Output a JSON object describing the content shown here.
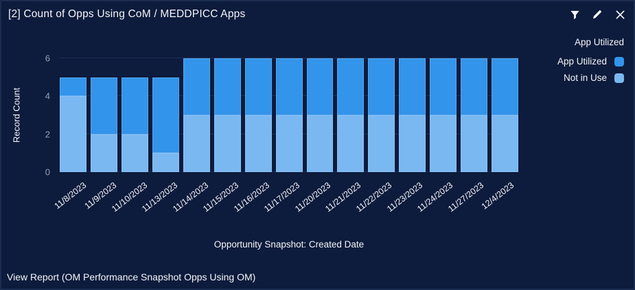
{
  "theme": {
    "card_bg": "#0d1b3c",
    "card_border": "#1c2c51",
    "gridline": "#1d2e52",
    "tick_text": "#94a2b6",
    "text": "#f3f6fa"
  },
  "widget": {
    "title": "[2] Count of Opps Using CoM / MEDDPICC Apps",
    "footer_link": "View Report (OM Performance Snapshot Opps Using OM)",
    "icons": [
      {
        "name": "filter-icon"
      },
      {
        "name": "edit-icon"
      },
      {
        "name": "close-icon"
      }
    ]
  },
  "chart_data": {
    "type": "bar",
    "stacked": true,
    "categories": [
      "11/8/2023",
      "11/9/2023",
      "11/10/2023",
      "11/13/2023",
      "11/14/2023",
      "11/15/2023",
      "11/16/2023",
      "11/17/2023",
      "11/20/2023",
      "11/21/2023",
      "11/22/2023",
      "11/23/2023",
      "11/24/2023",
      "11/27/2023",
      "12/4/2023"
    ],
    "series": [
      {
        "name": "App Utilized",
        "color": "#3294ea",
        "stack_position": "top",
        "values": [
          1,
          3,
          3,
          4,
          3,
          3,
          3,
          3,
          3,
          3,
          3,
          3,
          3,
          3,
          3
        ]
      },
      {
        "name": "Not in Use",
        "color": "#7ab8f1",
        "stack_position": "bottom",
        "values": [
          4,
          2,
          2,
          1,
          3,
          3,
          3,
          3,
          3,
          3,
          3,
          3,
          3,
          3,
          3
        ]
      }
    ],
    "totals": [
      5,
      5,
      5,
      5,
      6,
      6,
      6,
      6,
      6,
      6,
      6,
      6,
      6,
      6,
      6
    ],
    "xlabel": "Opportunity Snapshot: Created Date",
    "ylabel": "Record Count",
    "yticks": [
      0,
      2,
      4,
      6
    ],
    "ylim": [
      0,
      6
    ],
    "grid": "horizontal",
    "legend_title": "App Utilized",
    "legend_position": "top-right"
  }
}
